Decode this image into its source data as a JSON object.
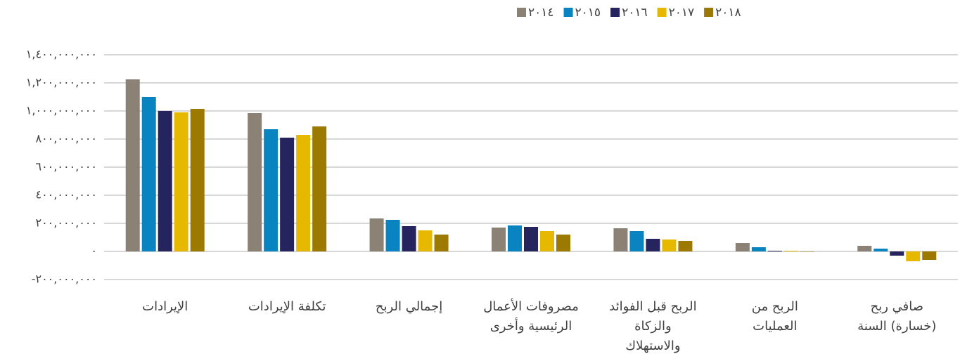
{
  "chart_data": {
    "type": "bar",
    "categories": [
      [
        "الإيرادات"
      ],
      [
        "تكلفة الإيرادات"
      ],
      [
        "إجمالي الربح"
      ],
      [
        "مصروفات الأعمال",
        "الرئيسية وأخرى"
      ],
      [
        "الربح قبل الفوائد",
        "والزكاة",
        "والاستهلاك"
      ],
      [
        "الربح من",
        "العمليات"
      ],
      [
        "صافي ربح",
        "(خسارة) السنة"
      ]
    ],
    "series": [
      {
        "name": "٢٠١٤",
        "color": "#8c8175",
        "values": [
          1225000000,
          985000000,
          235000000,
          170000000,
          165000000,
          60000000,
          40000000
        ]
      },
      {
        "name": "٢٠١٥",
        "color": "#0a84c0",
        "values": [
          1100000000,
          870000000,
          225000000,
          185000000,
          145000000,
          30000000,
          20000000
        ]
      },
      {
        "name": "٢٠١٦",
        "color": "#25245e",
        "values": [
          1000000000,
          810000000,
          180000000,
          175000000,
          90000000,
          5000000,
          -30000000
        ]
      },
      {
        "name": "٢٠١٧",
        "color": "#e6b800",
        "values": [
          990000000,
          830000000,
          150000000,
          145000000,
          85000000,
          5000000,
          -70000000
        ]
      },
      {
        "name": "٢٠١٨",
        "color": "#9c7900",
        "values": [
          1015000000,
          890000000,
          120000000,
          120000000,
          75000000,
          -2000000,
          -60000000
        ]
      }
    ],
    "ylim": [
      -200000000,
      1400000000
    ],
    "yticks": [
      {
        "value": -200000000,
        "label": "-٢٠٠,٠٠٠,٠٠٠"
      },
      {
        "value": 0,
        "label": "٠"
      },
      {
        "value": 200000000,
        "label": "٢٠٠,٠٠٠,٠٠٠"
      },
      {
        "value": 400000000,
        "label": "٤٠٠,٠٠٠,٠٠٠"
      },
      {
        "value": 600000000,
        "label": "٦٠٠,٠٠٠,٠٠٠"
      },
      {
        "value": 800000000,
        "label": "٨٠٠,٠٠٠,٠٠٠"
      },
      {
        "value": 1000000000,
        "label": "١,٠٠٠,٠٠٠,٠٠٠"
      },
      {
        "value": 1200000000,
        "label": "١,٢٠٠,٠٠٠,٠٠٠"
      },
      {
        "value": 1400000000,
        "label": "١,٤٠٠,٠٠٠,٠٠٠"
      }
    ],
    "grid": true,
    "legend": "top"
  }
}
